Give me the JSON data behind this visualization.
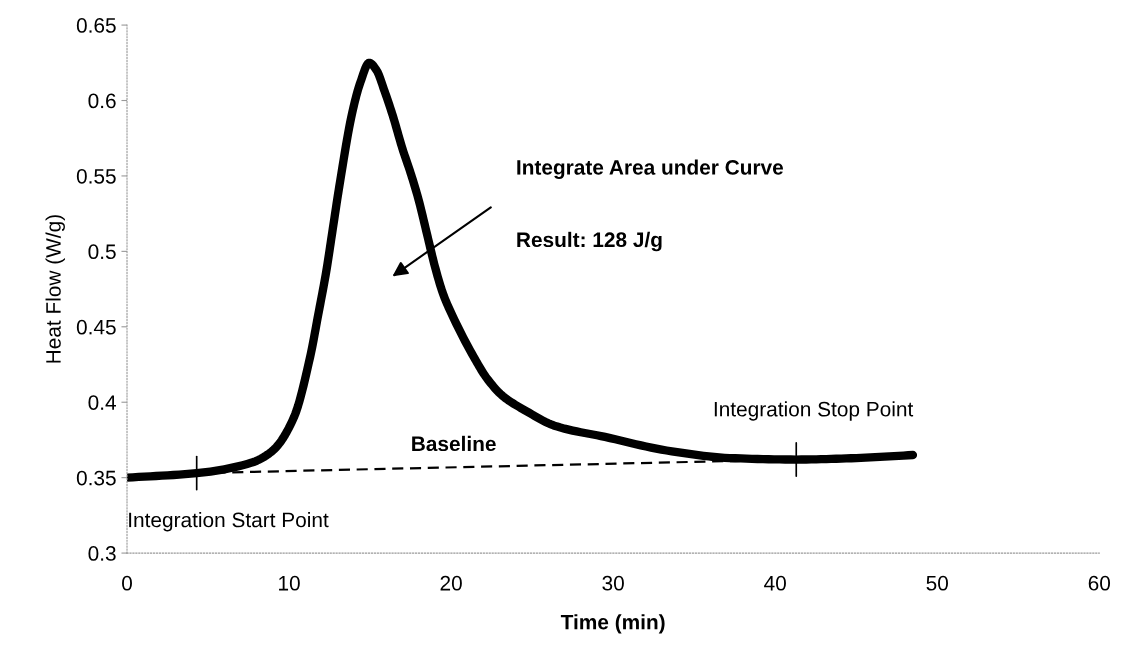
{
  "chart_data": {
    "type": "line",
    "xlabel": "Time (min)",
    "ylabel": "Heat Flow (W/g)",
    "xlim": [
      0,
      60
    ],
    "xticks": [
      0,
      10,
      20,
      30,
      40,
      50,
      60
    ],
    "ylim": [
      0.3,
      0.65
    ],
    "yticks": [
      0.3,
      0.35,
      0.4,
      0.45,
      0.5,
      0.55,
      0.6,
      0.65
    ],
    "grid": false,
    "legend": false,
    "series": [
      {
        "color": "#000000",
        "line_style": "solid",
        "x": [
          0,
          4.3,
          7.7,
          9.0,
          10.3,
          11.3,
          11.8,
          12.3,
          12.7,
          13.1,
          13.9,
          14.4,
          14.95,
          15.4,
          15.9,
          16.4,
          17.0,
          17.5,
          18.0,
          18.5,
          19.0,
          19.5,
          20.1,
          21.4,
          22.2,
          23.2,
          24.5,
          26.5,
          29.5,
          33.3,
          37.2,
          41.3,
          45,
          48.5
        ],
        "values": [
          0.35,
          0.353,
          0.36,
          0.368,
          0.39,
          0.43,
          0.458,
          0.487,
          0.515,
          0.543,
          0.592,
          0.612,
          0.625,
          0.62,
          0.606,
          0.59,
          0.568,
          0.552,
          0.534,
          0.512,
          0.49,
          0.472,
          0.457,
          0.43,
          0.416,
          0.404,
          0.395,
          0.384,
          0.377,
          0.368,
          0.363,
          0.362,
          0.363,
          0.365
        ]
      },
      {
        "name": "Baseline",
        "color": "#000000",
        "line_style": "dashed",
        "x": [
          4.3,
          41.3
        ],
        "values": [
          0.353,
          0.362
        ]
      }
    ],
    "annotations": [
      "Integrate Area under Curve",
      "Result: 128 J/g",
      {
        "text": "Integration Start Point",
        "x": 4.3,
        "y": 0.353
      },
      {
        "text": "Integration Stop Point",
        "x": 41.3,
        "y": 0.362
      }
    ]
  }
}
